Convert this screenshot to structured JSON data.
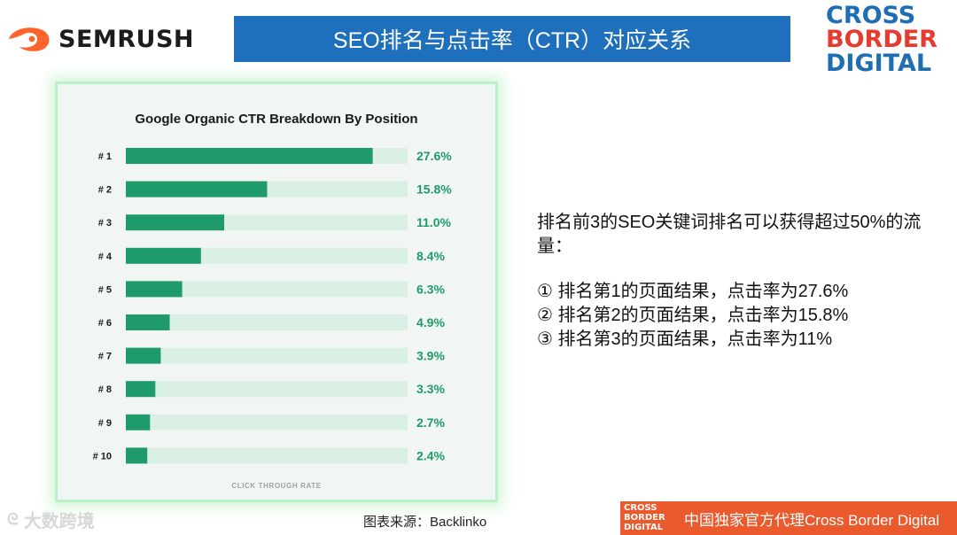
{
  "header": {
    "semrush_logo": "SEMRUSH",
    "title": "SEO排名与点击率（CTR）对应关系",
    "cbd_logo": [
      "CROSS",
      "BORDER",
      "DIGITAL"
    ]
  },
  "chart_data": {
    "type": "bar",
    "orientation": "horizontal",
    "title": "Google Organic CTR Breakdown By Position",
    "xlabel": "CLICK THROUGH RATE",
    "categories": [
      "# 1",
      "# 2",
      "# 3",
      "# 4",
      "# 5",
      "# 6",
      "# 7",
      "# 8",
      "# 9",
      "# 10"
    ],
    "values": [
      27.6,
      15.8,
      11.0,
      8.4,
      6.3,
      4.9,
      3.9,
      3.3,
      2.7,
      2.4
    ],
    "value_labels": [
      "27.6%",
      "15.8%",
      "11.0%",
      "8.4%",
      "6.3%",
      "4.9%",
      "3.9%",
      "3.3%",
      "2.7%",
      "2.4%"
    ],
    "xlim": [
      0,
      31.5
    ],
    "colors": {
      "bar": "#1e9a6b",
      "track": "#daf0e5",
      "label": "#1e9a6b",
      "text": "#1a1a1a",
      "axis_label": "#9aa3a0"
    }
  },
  "source": "图表来源：Backlinko",
  "description": {
    "intro": "排名前3的SEO关键词排名可以获得超过50%的流量：",
    "items": [
      "① 排名第1的页面结果，点击率为27.6%",
      "② 排名第2的页面结果，点击率为15.8%",
      "③ 排名第3的页面结果，点击率为11%"
    ]
  },
  "footer": {
    "mini_logo": [
      "CROSS",
      "BORDER",
      "DIGITAL"
    ],
    "banner_text": "中国独家官方代理Cross Border Digital",
    "watermark": "大数跨境"
  }
}
